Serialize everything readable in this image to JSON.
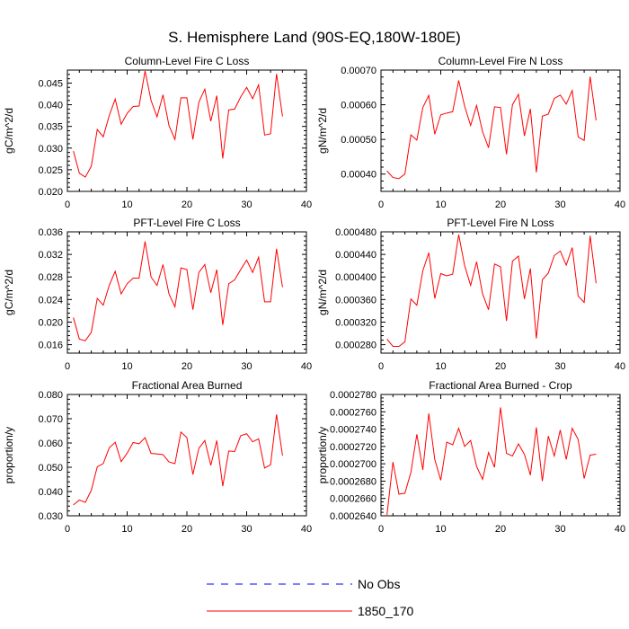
{
  "title": "S. Hemisphere Land (90S-EQ,180W-180E)",
  "legend": {
    "items": [
      {
        "label": "No Obs",
        "color": "#0000ff",
        "style": "dashed"
      },
      {
        "label": "1850_170",
        "color": "#ff0000",
        "style": "solid"
      }
    ]
  },
  "colors": {
    "series": "#ff0000",
    "obs": "#0000ff",
    "axis": "#000000"
  },
  "chart_data": [
    {
      "type": "line",
      "title": "Column-Level Fire C Loss",
      "ylabel": "gC/m^2/d",
      "xlim": [
        0,
        40
      ],
      "ylim": [
        0.02,
        0.048
      ],
      "xticks": [
        0,
        10,
        20,
        30,
        40
      ],
      "xtick_labels": [
        "0",
        "10",
        "20",
        "30",
        "40"
      ],
      "yticks": [
        0.02,
        0.025,
        0.03,
        0.035,
        0.04,
        0.045
      ],
      "ytick_labels": [
        "0.020",
        "0.025",
        "0.030",
        "0.035",
        "0.040",
        "0.045"
      ],
      "series": [
        {
          "name": "1850_170",
          "x": [
            1,
            2,
            3,
            4,
            5,
            6,
            7,
            8,
            9,
            10,
            11,
            12,
            13,
            14,
            15,
            16,
            17,
            18,
            19,
            20,
            21,
            22,
            23,
            24,
            25,
            26,
            27,
            28,
            29,
            30,
            31,
            32,
            33,
            34,
            35,
            36
          ],
          "values": [
            0.0293,
            0.0242,
            0.0233,
            0.0258,
            0.0343,
            0.0326,
            0.0375,
            0.0413,
            0.0355,
            0.038,
            0.0396,
            0.0397,
            0.0478,
            0.041,
            0.0372,
            0.0423,
            0.0352,
            0.032,
            0.0416,
            0.0416,
            0.032,
            0.0406,
            0.0436,
            0.0362,
            0.0421,
            0.0276,
            0.0388,
            0.039,
            0.0418,
            0.044,
            0.0414,
            0.0446,
            0.033,
            0.0333,
            0.0471,
            0.0373
          ]
        }
      ]
    },
    {
      "type": "line",
      "title": "Column-Level Fire N Loss",
      "ylabel": "gN/m^2/d",
      "xlim": [
        0,
        40
      ],
      "ylim": [
        0.00035,
        0.0007
      ],
      "xticks": [
        0,
        10,
        20,
        30,
        40
      ],
      "xtick_labels": [
        "0",
        "10",
        "20",
        "30",
        "40"
      ],
      "yticks": [
        0.0004,
        0.0005,
        0.0006,
        0.0007
      ],
      "ytick_labels": [
        "0.00040",
        "0.00050",
        "0.00060",
        "0.00070"
      ],
      "series": [
        {
          "name": "1850_170",
          "x": [
            1,
            2,
            3,
            4,
            5,
            6,
            7,
            8,
            9,
            10,
            11,
            12,
            13,
            14,
            15,
            16,
            17,
            18,
            19,
            20,
            21,
            22,
            23,
            24,
            25,
            26,
            27,
            28,
            29,
            30,
            31,
            32,
            33,
            34,
            35,
            36
          ],
          "values": [
            0.000409,
            0.00039,
            0.000387,
            0.0004,
            0.000513,
            0.000498,
            0.000592,
            0.000627,
            0.000515,
            0.000571,
            0.000576,
            0.00058,
            0.00067,
            0.000596,
            0.00054,
            0.000598,
            0.000522,
            0.000476,
            0.000594,
            0.000592,
            0.000457,
            0.0006,
            0.00063,
            0.00051,
            0.000588,
            0.000405,
            0.000567,
            0.000573,
            0.000618,
            0.000628,
            0.000602,
            0.000641,
            0.000507,
            0.000497,
            0.000681,
            0.000555
          ]
        }
      ]
    },
    {
      "type": "line",
      "title": "PFT-Level Fire C Loss",
      "ylabel": "gC/m^2/d",
      "xlim": [
        0,
        40
      ],
      "ylim": [
        0.0145,
        0.036
      ],
      "xticks": [
        0,
        10,
        20,
        30,
        40
      ],
      "xtick_labels": [
        "0",
        "10",
        "20",
        "30",
        "40"
      ],
      "yticks": [
        0.016,
        0.02,
        0.024,
        0.028,
        0.032,
        0.036
      ],
      "ytick_labels": [
        "0.016",
        "0.020",
        "0.024",
        "0.028",
        "0.032",
        "0.036"
      ],
      "series": [
        {
          "name": "1850_170",
          "x": [
            1,
            2,
            3,
            4,
            5,
            6,
            7,
            8,
            9,
            10,
            11,
            12,
            13,
            14,
            15,
            16,
            17,
            18,
            19,
            20,
            21,
            22,
            23,
            24,
            25,
            26,
            27,
            28,
            29,
            30,
            31,
            32,
            33,
            34,
            35,
            36
          ],
          "values": [
            0.0208,
            0.017,
            0.0167,
            0.0182,
            0.0242,
            0.023,
            0.0265,
            0.029,
            0.025,
            0.0268,
            0.0278,
            0.0278,
            0.0343,
            0.028,
            0.0265,
            0.0302,
            0.025,
            0.0227,
            0.0296,
            0.0293,
            0.0222,
            0.0288,
            0.0302,
            0.0252,
            0.0293,
            0.0195,
            0.0268,
            0.0275,
            0.0293,
            0.031,
            0.0288,
            0.0315,
            0.0236,
            0.0236,
            0.033,
            0.0262
          ]
        }
      ]
    },
    {
      "type": "line",
      "title": "PFT-Level Fire N Loss",
      "ylabel": "gN/m^2/d",
      "xlim": [
        0,
        40
      ],
      "ylim": [
        0.000265,
        0.00048
      ],
      "xticks": [
        0,
        10,
        20,
        30,
        40
      ],
      "xtick_labels": [
        "0",
        "10",
        "20",
        "30",
        "40"
      ],
      "yticks": [
        0.00028,
        0.00032,
        0.00036,
        0.0004,
        0.00044,
        0.00048
      ],
      "ytick_labels": [
        "0.000280",
        "0.000320",
        "0.000360",
        "0.000400",
        "0.000440",
        "0.000480"
      ],
      "series": [
        {
          "name": "1850_170",
          "x": [
            1,
            2,
            3,
            4,
            5,
            6,
            7,
            8,
            9,
            10,
            11,
            12,
            13,
            14,
            15,
            16,
            17,
            18,
            19,
            20,
            21,
            22,
            23,
            24,
            25,
            26,
            27,
            28,
            29,
            30,
            31,
            32,
            33,
            34,
            35,
            36
          ],
          "values": [
            0.00029,
            0.000277,
            0.000277,
            0.000285,
            0.000361,
            0.00035,
            0.000411,
            0.000443,
            0.000362,
            0.000406,
            0.000402,
            0.000405,
            0.000475,
            0.00042,
            0.000385,
            0.000427,
            0.00037,
            0.000342,
            0.000423,
            0.000418,
            0.000322,
            0.000428,
            0.000437,
            0.000361,
            0.000415,
            0.000291,
            0.000395,
            0.000407,
            0.000438,
            0.000446,
            0.000421,
            0.000452,
            0.000366,
            0.000355,
            0.000473,
            0.000389
          ]
        }
      ]
    },
    {
      "type": "line",
      "title": "Fractional Area Burned",
      "ylabel": "proportion/y",
      "xlim": [
        0,
        40
      ],
      "ylim": [
        0.03,
        0.08
      ],
      "xticks": [
        0,
        10,
        20,
        30,
        40
      ],
      "xtick_labels": [
        "0",
        "10",
        "20",
        "30",
        "40"
      ],
      "yticks": [
        0.03,
        0.04,
        0.05,
        0.06,
        0.07,
        0.08
      ],
      "ytick_labels": [
        "0.030",
        "0.040",
        "0.050",
        "0.060",
        "0.070",
        "0.080"
      ],
      "series": [
        {
          "name": "1850_170",
          "x": [
            1,
            2,
            3,
            4,
            5,
            6,
            7,
            8,
            9,
            10,
            11,
            12,
            13,
            14,
            15,
            16,
            17,
            18,
            19,
            20,
            21,
            22,
            23,
            24,
            25,
            26,
            27,
            28,
            29,
            30,
            31,
            32,
            33,
            34,
            35,
            36
          ],
          "values": [
            0.0345,
            0.0365,
            0.0355,
            0.0405,
            0.0502,
            0.0515,
            0.058,
            0.0603,
            0.0523,
            0.0558,
            0.0602,
            0.0597,
            0.0622,
            0.0557,
            0.0555,
            0.0552,
            0.0522,
            0.0515,
            0.0645,
            0.0622,
            0.047,
            0.0578,
            0.061,
            0.0508,
            0.061,
            0.0422,
            0.0567,
            0.0565,
            0.063,
            0.0638,
            0.0605,
            0.0617,
            0.0497,
            0.051,
            0.0718,
            0.0548
          ]
        }
      ]
    },
    {
      "type": "line",
      "title": "Fractional Area Burned - Crop",
      "ylabel": "proportion/y",
      "xlim": [
        0,
        40
      ],
      "ylim": [
        0.000264,
        0.000278
      ],
      "xticks": [
        0,
        10,
        20,
        30,
        40
      ],
      "xtick_labels": [
        "0",
        "10",
        "20",
        "30",
        "40"
      ],
      "yticks": [
        0.000264,
        0.000266,
        0.000268,
        0.00027,
        0.000272,
        0.000274,
        0.000276,
        0.000278
      ],
      "ytick_labels": [
        "0.0002640",
        "0.0002660",
        "0.0002680",
        "0.0002700",
        "0.0002720",
        "0.0002740",
        "0.0002760",
        "0.0002780"
      ],
      "series": [
        {
          "name": "1850_170",
          "x": [
            1,
            2,
            3,
            4,
            5,
            6,
            7,
            8,
            9,
            10,
            11,
            12,
            13,
            14,
            15,
            16,
            17,
            18,
            19,
            20,
            21,
            22,
            23,
            24,
            25,
            26,
            27,
            28,
            29,
            30,
            31,
            32,
            33,
            34,
            35,
            36
          ],
          "values": [
            0.0002641,
            0.0002702,
            0.0002665,
            0.0002666,
            0.000269,
            0.0002734,
            0.0002693,
            0.0002758,
            0.0002705,
            0.0002681,
            0.0002725,
            0.0002722,
            0.0002741,
            0.000272,
            0.0002727,
            0.0002697,
            0.0002682,
            0.0002713,
            0.0002696,
            0.0002765,
            0.0002712,
            0.0002709,
            0.0002723,
            0.0002711,
            0.0002687,
            0.0002742,
            0.000268,
            0.0002732,
            0.0002709,
            0.0002739,
            0.0002705,
            0.0002741,
            0.0002728,
            0.0002683,
            0.000271,
            0.0002711
          ]
        }
      ]
    }
  ]
}
